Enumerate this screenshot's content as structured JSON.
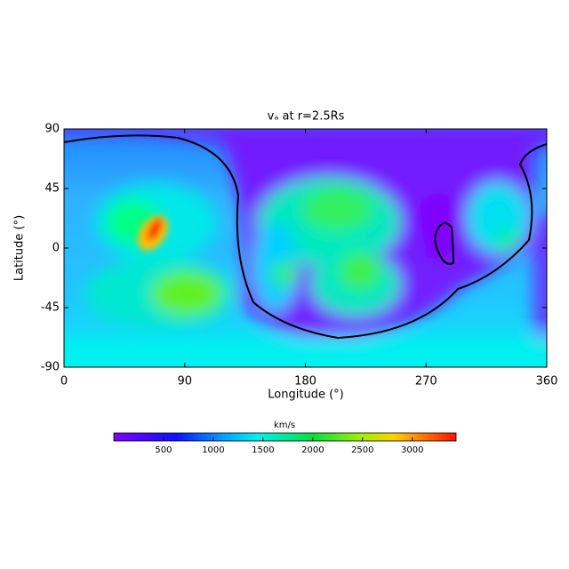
{
  "chart_data": {
    "type": "heatmap",
    "title": "vₐ at r=2.5Rs",
    "x_label": "Longitude (°)",
    "y_label": "Latitude (°)",
    "xlim": [
      0,
      360
    ],
    "xticks": [
      0,
      90,
      180,
      270,
      360
    ],
    "ylim": [
      -90,
      90
    ],
    "yticks": [
      -90,
      -45,
      0,
      45,
      90
    ],
    "colorbar": {
      "label": "km/s",
      "lim": [
        0,
        3440
      ],
      "ticks": [
        500,
        1000,
        1500,
        2000,
        2500,
        3000
      ]
    }
  }
}
